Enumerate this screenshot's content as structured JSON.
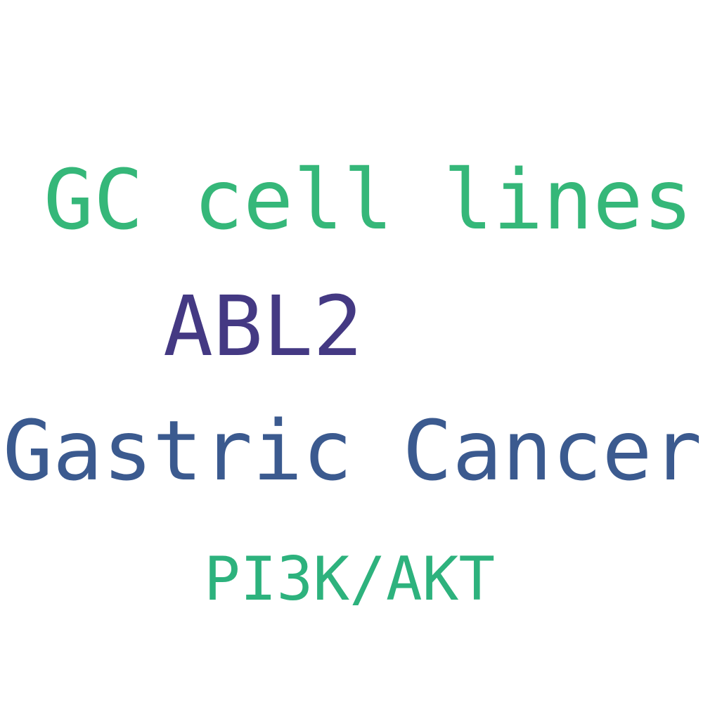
{
  "words": [
    {
      "text": "GC cell lines",
      "color": "#35b779"
    },
    {
      "text": "ABL2",
      "color": "#443983"
    },
    {
      "text": "Gastric Cancer",
      "color": "#3b5a8f"
    },
    {
      "text": "PI3K/AKT",
      "color": "#2db27d"
    }
  ]
}
